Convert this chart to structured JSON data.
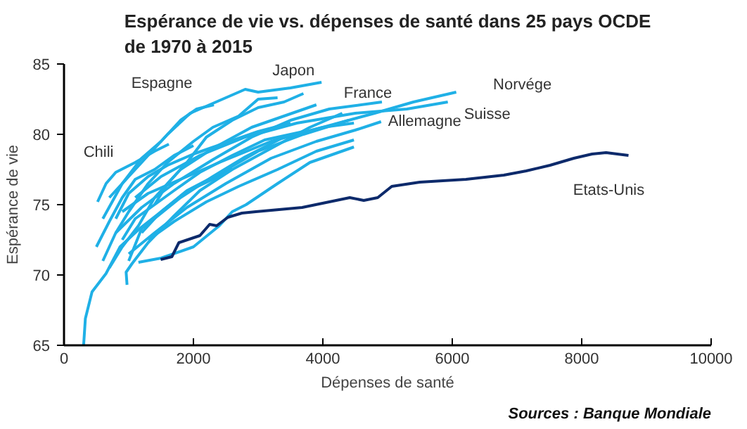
{
  "chart_data": {
    "type": "line",
    "title": "Espérance de vie vs. dépenses de santé dans 25 pays OCDE\nde 1970 à 2015",
    "xlabel": "Dépenses de santé",
    "ylabel": "Espérance de vie",
    "xlim": [
      0,
      10000
    ],
    "xticks": [
      0,
      2000,
      4000,
      6000,
      8000,
      10000
    ],
    "ylim": [
      65,
      85
    ],
    "yticks": [
      65,
      70,
      75,
      80,
      85
    ],
    "grid": false,
    "legend": false,
    "marker": "none",
    "line_style": "solid",
    "annotations": [
      "Sources : Banque Mondiale"
    ],
    "series": [
      {
        "name": "Japon",
        "color": "#1fb0e6",
        "x": [
          700,
          1000,
          1300,
          1600,
          1950,
          2250,
          2800,
          3000,
          3500,
          3980
        ],
        "values": [
          75.5,
          77,
          78.5,
          80,
          81.5,
          82.1,
          83.2,
          83,
          83.3,
          83.7
        ]
      },
      {
        "name": "Espagne",
        "color": "#1fb0e6",
        "x": [
          600,
          900,
          1200,
          1500,
          1800,
          2050,
          2316
        ],
        "values": [
          74,
          76.5,
          78.3,
          79.5,
          81,
          81.8,
          82.1
        ]
      },
      {
        "name": "Chili",
        "color": "#1fb0e6",
        "x": [
          519,
          650,
          800,
          1100,
          1400,
          1620
        ],
        "values": [
          75.2,
          76.5,
          77.3,
          78,
          78.8,
          79.3
        ]
      },
      {
        "name": "Norvége",
        "color": "#1fb0e6",
        "x": [
          900,
          1300,
          1800,
          2400,
          3200,
          4000,
          4800,
          5400,
          6061
        ],
        "values": [
          74.5,
          75.8,
          76.8,
          78,
          79.5,
          80.5,
          81.5,
          82.3,
          83
        ]
      },
      {
        "name": "Suisse",
        "color": "#1fb0e6",
        "x": [
          1100,
          1500,
          2100,
          2800,
          3600,
          4500,
          5300,
          5931
        ],
        "values": [
          75.5,
          77,
          78.5,
          79.8,
          80.8,
          81.5,
          81.8,
          82.3
        ]
      },
      {
        "name": "France",
        "color": "#1fb0e6",
        "x": [
          800,
          1200,
          1700,
          2300,
          2900,
          3500,
          4100,
          4913
        ],
        "values": [
          73,
          74.8,
          76.5,
          78.2,
          79.8,
          81,
          81.8,
          82.3
        ]
      },
      {
        "name": "Allemagne",
        "color": "#1fb0e6",
        "x": [
          1000,
          1400,
          1900,
          2500,
          3200,
          3900,
          4500,
          4900
        ],
        "values": [
          71.5,
          73,
          74.8,
          76.5,
          78.3,
          79.5,
          80.3,
          80.9
        ]
      },
      {
        "color": "#1fb0e6",
        "x": [
          303,
          330,
          433,
          649,
          866,
          1169,
          1500,
          1883,
          2300,
          2597
        ],
        "values": [
          65,
          66.9,
          68.8,
          70.1,
          72,
          73.3,
          74.5,
          75.9,
          76.8,
          77.6
        ]
      },
      {
        "color": "#1fb0e6",
        "x": [
          1150,
          1500,
          2000,
          2400,
          2600,
          2814,
          3300,
          3800,
          4480
        ],
        "values": [
          70.9,
          71.2,
          72,
          73.5,
          74.5,
          75,
          76.5,
          78,
          79.1
        ]
      },
      {
        "color": "#1fb0e6",
        "x": [
          974,
          960,
          1050,
          1300,
          1700,
          2100,
          2600,
          3200,
          3800,
          4300
        ],
        "values": [
          69.3,
          70.2,
          70.8,
          72.3,
          74.2,
          76,
          77.5,
          79,
          80.5,
          81.5
        ]
      },
      {
        "color": "#1fb0e6",
        "x": [
          700,
          900,
          1150,
          1400,
          1800,
          2300,
          2900,
          3400,
          3900
        ],
        "values": [
          70.5,
          72,
          73.5,
          75.5,
          77.5,
          79,
          80.5,
          81.3,
          82.1
        ]
      },
      {
        "color": "#1fb0e6",
        "x": [
          1200,
          1500,
          1900,
          2400,
          3000,
          3700,
          4400
        ],
        "values": [
          73,
          74.5,
          76,
          77.2,
          78.8,
          80,
          81
        ]
      },
      {
        "color": "#1fb0e6",
        "x": [
          600,
          800,
          1000,
          1300,
          1600,
          2000,
          2300,
          2700,
          3000,
          3300
        ],
        "values": [
          71,
          73,
          74.5,
          76.5,
          78,
          79.5,
          80.5,
          81.3,
          82.5,
          82.6
        ]
      },
      {
        "color": "#1fb0e6",
        "x": [
          900,
          1100,
          1400,
          1700,
          2100,
          2600,
          3100,
          3700
        ],
        "values": [
          72.5,
          74,
          75,
          76,
          77.3,
          78.5,
          79.6,
          80.2
        ]
      },
      {
        "color": "#1fb0e6",
        "x": [
          1000,
          1200,
          1450,
          1800,
          2300,
          2800,
          3400,
          4000,
          4480
        ],
        "values": [
          71,
          73.3,
          74.2,
          75.5,
          77,
          78.4,
          79.8,
          80.5,
          80.8
        ]
      },
      {
        "color": "#1fb0e6",
        "x": [
          1400,
          1600,
          1900,
          2200,
          2600,
          3000,
          3400,
          3700
        ],
        "values": [
          75,
          76.5,
          78,
          79.8,
          81,
          81.9,
          82.3,
          82.9
        ]
      },
      {
        "color": "#1fb0e6",
        "x": [
          500,
          700,
          900,
          1100,
          1400,
          1700,
          2000
        ],
        "values": [
          72,
          73.8,
          75.5,
          76.8,
          77.5,
          78.5,
          79.2
        ]
      },
      {
        "color": "#1fb0e6",
        "x": [
          1300,
          1700,
          2200,
          2700,
          3300,
          3900,
          4480
        ],
        "values": [
          72.5,
          73.8,
          75.2,
          76.3,
          77.5,
          78.8,
          79.6
        ]
      },
      {
        "color": "#1fb0e6",
        "x": [
          800,
          1000,
          1300,
          1600,
          2000,
          2500,
          3000,
          3500
        ],
        "values": [
          74,
          75.8,
          77,
          77.8,
          78.6,
          79.4,
          80.2,
          80.8
        ]
      },
      {
        "name": "Etats-Unis",
        "color": "#0d2a6b",
        "x": [
          1494,
          1667,
          1775,
          2100,
          2251,
          2359,
          2532,
          2749,
          2965,
          3680,
          4416,
          4632,
          4848,
          5065,
          5498,
          6212,
          6797,
          7143,
          7511,
          7879,
          8160,
          8377,
          8723
        ],
        "values": [
          71.1,
          71.3,
          72.3,
          72.8,
          73.6,
          73.5,
          74.1,
          74.4,
          74.5,
          74.8,
          75.5,
          75.3,
          75.5,
          76.3,
          76.6,
          76.8,
          77.1,
          77.4,
          77.8,
          78.3,
          78.6,
          78.7,
          78.5
        ]
      }
    ]
  }
}
